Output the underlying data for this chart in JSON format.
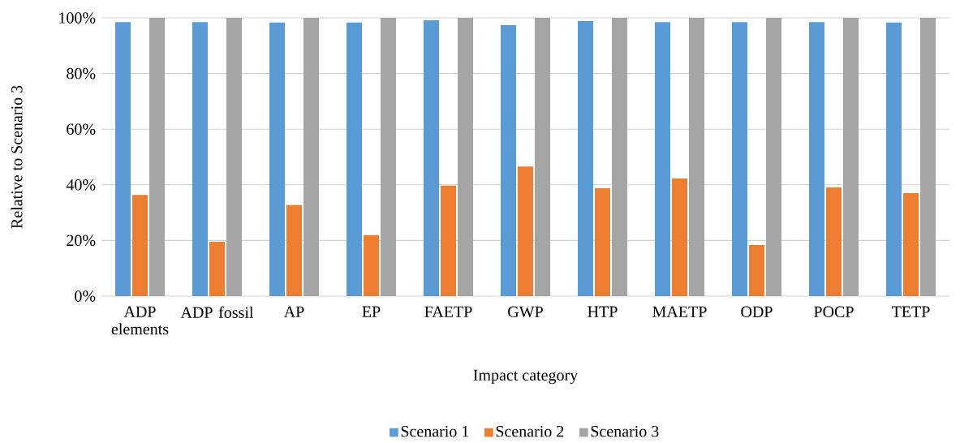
{
  "chart_data": {
    "type": "bar",
    "xlabel": "Impact category",
    "ylabel": "Relative to Scenario 3",
    "categories": [
      "ADP elements",
      "ADP fossil",
      "AP",
      "EP",
      "FAETP",
      "GWP",
      "HTP",
      "MAETP",
      "ODP",
      "POCP",
      "TETP"
    ],
    "series": [
      {
        "name": "Scenario 1",
        "color": "#5b9bd5",
        "values": [
          98.5,
          98.5,
          98.3,
          98.3,
          99.1,
          97.4,
          98.8,
          98.5,
          98.5,
          98.5,
          98.3
        ]
      },
      {
        "name": "Scenario 2",
        "color": "#ed7d31",
        "values": [
          36.4,
          19.5,
          32.7,
          21.9,
          39.7,
          46.6,
          38.8,
          42.3,
          18.4,
          39.1,
          37.0
        ]
      },
      {
        "name": "Scenario 3",
        "color": "#a5a5a5",
        "values": [
          100,
          100,
          100,
          100,
          100,
          100,
          100,
          100,
          100,
          100,
          100
        ]
      }
    ],
    "ylim": [
      0,
      100
    ],
    "yticks": [
      {
        "value": 0,
        "label": "0%"
      },
      {
        "value": 20,
        "label": "20%"
      },
      {
        "value": 40,
        "label": "40%"
      },
      {
        "value": 60,
        "label": "60%"
      },
      {
        "value": 80,
        "label": "80%"
      },
      {
        "value": 100,
        "label": "100%"
      }
    ],
    "grid": "y",
    "legend": "bottom"
  }
}
